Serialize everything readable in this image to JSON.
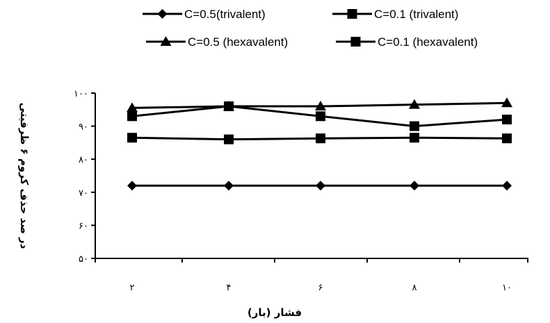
{
  "chart_data": {
    "type": "line",
    "title": "",
    "xlabel": "فشار (بار)",
    "ylabel": "در صد حذف کروم ۶ ظرفیتی",
    "x": [
      2,
      4,
      6,
      8,
      10
    ],
    "x_tick_labels": [
      "۲",
      "۴",
      "۶",
      "۸",
      "۱۰"
    ],
    "ylim": [
      50,
      100
    ],
    "y_ticks": [
      50,
      60,
      70,
      80,
      90,
      100
    ],
    "y_tick_labels": [
      "۵۰",
      "۶۰",
      "۷۰",
      "۸۰",
      "۹۰",
      "۱۰۰"
    ],
    "grid": false,
    "legend_position": "top",
    "series": [
      {
        "name": "C=0.5(trivalent)",
        "marker": "diamond",
        "color": "#000000",
        "values": [
          72,
          72,
          72,
          72,
          72
        ]
      },
      {
        "name": "C=0.1 (trivalent)",
        "marker": "square",
        "color": "#000000",
        "values": [
          93,
          96,
          93,
          90,
          92
        ]
      },
      {
        "name": "C=0.5 (hexavalent)",
        "marker": "triangle",
        "color": "#000000",
        "values": [
          95.5,
          96,
          96,
          96.5,
          97
        ]
      },
      {
        "name": "C=0.1 (hexavalent)",
        "marker": "square",
        "color": "#000000",
        "values": [
          86.5,
          86,
          86.3,
          86.5,
          86.3
        ]
      }
    ]
  }
}
